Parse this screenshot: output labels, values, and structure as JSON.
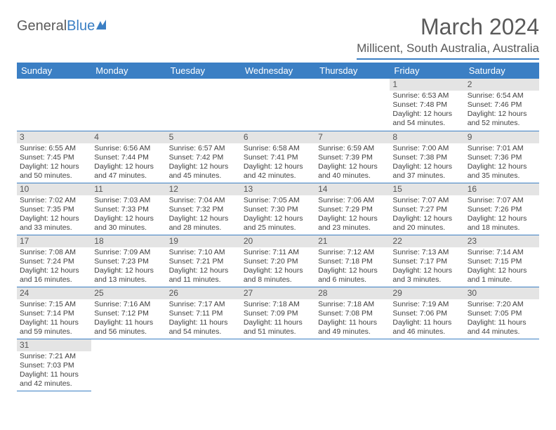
{
  "logo": {
    "text1": "General",
    "text2": "Blue"
  },
  "title": "March 2024",
  "location": "Millicent, South Australia, Australia",
  "colors": {
    "accent": "#3b7fc4",
    "text": "#5a5a5a",
    "dayHeader": "#e4e4e4"
  },
  "weekdays": [
    "Sunday",
    "Monday",
    "Tuesday",
    "Wednesday",
    "Thursday",
    "Friday",
    "Saturday"
  ],
  "startWeekday": 5,
  "days": [
    {
      "n": 1,
      "sr": "6:53 AM",
      "ss": "7:48 PM",
      "dl": "12 hours and 54 minutes."
    },
    {
      "n": 2,
      "sr": "6:54 AM",
      "ss": "7:46 PM",
      "dl": "12 hours and 52 minutes."
    },
    {
      "n": 3,
      "sr": "6:55 AM",
      "ss": "7:45 PM",
      "dl": "12 hours and 50 minutes."
    },
    {
      "n": 4,
      "sr": "6:56 AM",
      "ss": "7:44 PM",
      "dl": "12 hours and 47 minutes."
    },
    {
      "n": 5,
      "sr": "6:57 AM",
      "ss": "7:42 PM",
      "dl": "12 hours and 45 minutes."
    },
    {
      "n": 6,
      "sr": "6:58 AM",
      "ss": "7:41 PM",
      "dl": "12 hours and 42 minutes."
    },
    {
      "n": 7,
      "sr": "6:59 AM",
      "ss": "7:39 PM",
      "dl": "12 hours and 40 minutes."
    },
    {
      "n": 8,
      "sr": "7:00 AM",
      "ss": "7:38 PM",
      "dl": "12 hours and 37 minutes."
    },
    {
      "n": 9,
      "sr": "7:01 AM",
      "ss": "7:36 PM",
      "dl": "12 hours and 35 minutes."
    },
    {
      "n": 10,
      "sr": "7:02 AM",
      "ss": "7:35 PM",
      "dl": "12 hours and 33 minutes."
    },
    {
      "n": 11,
      "sr": "7:03 AM",
      "ss": "7:33 PM",
      "dl": "12 hours and 30 minutes."
    },
    {
      "n": 12,
      "sr": "7:04 AM",
      "ss": "7:32 PM",
      "dl": "12 hours and 28 minutes."
    },
    {
      "n": 13,
      "sr": "7:05 AM",
      "ss": "7:30 PM",
      "dl": "12 hours and 25 minutes."
    },
    {
      "n": 14,
      "sr": "7:06 AM",
      "ss": "7:29 PM",
      "dl": "12 hours and 23 minutes."
    },
    {
      "n": 15,
      "sr": "7:07 AM",
      "ss": "7:27 PM",
      "dl": "12 hours and 20 minutes."
    },
    {
      "n": 16,
      "sr": "7:07 AM",
      "ss": "7:26 PM",
      "dl": "12 hours and 18 minutes."
    },
    {
      "n": 17,
      "sr": "7:08 AM",
      "ss": "7:24 PM",
      "dl": "12 hours and 16 minutes."
    },
    {
      "n": 18,
      "sr": "7:09 AM",
      "ss": "7:23 PM",
      "dl": "12 hours and 13 minutes."
    },
    {
      "n": 19,
      "sr": "7:10 AM",
      "ss": "7:21 PM",
      "dl": "12 hours and 11 minutes."
    },
    {
      "n": 20,
      "sr": "7:11 AM",
      "ss": "7:20 PM",
      "dl": "12 hours and 8 minutes."
    },
    {
      "n": 21,
      "sr": "7:12 AM",
      "ss": "7:18 PM",
      "dl": "12 hours and 6 minutes."
    },
    {
      "n": 22,
      "sr": "7:13 AM",
      "ss": "7:17 PM",
      "dl": "12 hours and 3 minutes."
    },
    {
      "n": 23,
      "sr": "7:14 AM",
      "ss": "7:15 PM",
      "dl": "12 hours and 1 minute."
    },
    {
      "n": 24,
      "sr": "7:15 AM",
      "ss": "7:14 PM",
      "dl": "11 hours and 59 minutes."
    },
    {
      "n": 25,
      "sr": "7:16 AM",
      "ss": "7:12 PM",
      "dl": "11 hours and 56 minutes."
    },
    {
      "n": 26,
      "sr": "7:17 AM",
      "ss": "7:11 PM",
      "dl": "11 hours and 54 minutes."
    },
    {
      "n": 27,
      "sr": "7:18 AM",
      "ss": "7:09 PM",
      "dl": "11 hours and 51 minutes."
    },
    {
      "n": 28,
      "sr": "7:18 AM",
      "ss": "7:08 PM",
      "dl": "11 hours and 49 minutes."
    },
    {
      "n": 29,
      "sr": "7:19 AM",
      "ss": "7:06 PM",
      "dl": "11 hours and 46 minutes."
    },
    {
      "n": 30,
      "sr": "7:20 AM",
      "ss": "7:05 PM",
      "dl": "11 hours and 44 minutes."
    },
    {
      "n": 31,
      "sr": "7:21 AM",
      "ss": "7:03 PM",
      "dl": "11 hours and 42 minutes."
    }
  ],
  "labels": {
    "sunrise": "Sunrise:",
    "sunset": "Sunset:",
    "daylight": "Daylight:"
  }
}
